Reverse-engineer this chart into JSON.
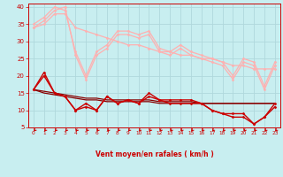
{
  "bg_color": "#c8eef0",
  "grid_color": "#b0d8dc",
  "xlabel": "Vent moyen/en rafales ( km/h )",
  "xlabel_color": "#cc0000",
  "tick_color": "#cc0000",
  "ylim": [
    5,
    41
  ],
  "xlim": [
    -0.5,
    23.5
  ],
  "yticks": [
    5,
    10,
    15,
    20,
    25,
    30,
    35,
    40
  ],
  "xticks": [
    0,
    1,
    2,
    3,
    4,
    5,
    6,
    7,
    8,
    9,
    10,
    11,
    12,
    13,
    14,
    15,
    16,
    17,
    18,
    19,
    20,
    21,
    22,
    23
  ],
  "series": [
    {
      "x": [
        0,
        1,
        2,
        3,
        4,
        5,
        6,
        7,
        8,
        9,
        10,
        11,
        12,
        13,
        14,
        15,
        16,
        17,
        18,
        19,
        20,
        21,
        22,
        23
      ],
      "y": [
        34,
        36,
        39,
        40,
        26,
        19,
        26,
        28,
        32,
        32,
        31,
        32,
        27,
        26,
        28,
        26,
        25,
        24,
        23,
        19,
        24,
        23,
        16,
        23
      ],
      "color": "#ffb0b0",
      "lw": 0.9,
      "marker": "D",
      "ms": 1.5,
      "zorder": 3
    },
    {
      "x": [
        0,
        1,
        2,
        3,
        4,
        5,
        6,
        7,
        8,
        9,
        10,
        11,
        12,
        13,
        14,
        15,
        16,
        17,
        18,
        19,
        20,
        21,
        22,
        23
      ],
      "y": [
        35,
        37,
        40,
        39,
        27,
        20,
        27,
        29,
        33,
        33,
        32,
        33,
        28,
        27,
        29,
        27,
        26,
        25,
        24,
        20,
        25,
        24,
        17,
        24
      ],
      "color": "#ffb0b0",
      "lw": 0.9,
      "marker": "D",
      "ms": 1.5,
      "zorder": 3
    },
    {
      "x": [
        0,
        1,
        2,
        3,
        4,
        5,
        6,
        7,
        8,
        9,
        10,
        11,
        12,
        13,
        14,
        15,
        16,
        17,
        18,
        19,
        20,
        21,
        22,
        23
      ],
      "y": [
        34,
        35,
        38,
        38,
        34,
        33,
        32,
        31,
        30,
        29,
        29,
        28,
        27,
        27,
        26,
        26,
        25,
        25,
        24,
        23,
        23,
        22,
        22,
        22
      ],
      "color": "#ffb0b0",
      "lw": 0.9,
      "marker": "D",
      "ms": 1.5,
      "zorder": 2
    },
    {
      "x": [
        0,
        1,
        2,
        3,
        4,
        5,
        6,
        7,
        8,
        9,
        10,
        11,
        12,
        13,
        14,
        15,
        16,
        17,
        18,
        19,
        20,
        21,
        22,
        23
      ],
      "y": [
        16,
        21,
        15,
        14,
        10,
        12,
        10,
        14,
        12,
        13,
        12,
        15,
        13,
        13,
        13,
        13,
        12,
        10,
        9,
        9,
        9,
        6,
        8,
        12
      ],
      "color": "#cc0000",
      "lw": 1.0,
      "marker": "D",
      "ms": 1.5,
      "zorder": 4
    },
    {
      "x": [
        0,
        1,
        2,
        3,
        4,
        5,
        6,
        7,
        8,
        9,
        10,
        11,
        12,
        13,
        14,
        15,
        16,
        17,
        18,
        19,
        20,
        21,
        22,
        23
      ],
      "y": [
        16,
        20,
        15,
        14,
        10,
        11,
        10,
        14,
        12,
        13,
        12,
        14,
        13,
        12,
        12,
        12,
        12,
        10,
        9,
        8,
        8,
        6,
        8,
        11
      ],
      "color": "#cc0000",
      "lw": 1.0,
      "marker": "D",
      "ms": 1.5,
      "zorder": 4
    },
    {
      "x": [
        0,
        1,
        2,
        3,
        4,
        5,
        6,
        7,
        8,
        9,
        10,
        11,
        12,
        13,
        14,
        15,
        16,
        17,
        18,
        19,
        20,
        21,
        22,
        23
      ],
      "y": [
        16,
        15.5,
        15,
        14.5,
        14,
        13.5,
        13.5,
        13,
        13,
        13,
        13,
        13,
        12.5,
        12.5,
        12.5,
        12.5,
        12,
        12,
        12,
        12,
        12,
        12,
        12,
        12
      ],
      "color": "#880000",
      "lw": 0.9,
      "marker": null,
      "ms": 0,
      "zorder": 2
    },
    {
      "x": [
        0,
        1,
        2,
        3,
        4,
        5,
        6,
        7,
        8,
        9,
        10,
        11,
        12,
        13,
        14,
        15,
        16,
        17,
        18,
        19,
        20,
        21,
        22,
        23
      ],
      "y": [
        16,
        15,
        14.5,
        14,
        13.5,
        13,
        13,
        12.5,
        12.5,
        12.5,
        12.5,
        12.5,
        12,
        12,
        12,
        12,
        12,
        12,
        12,
        12,
        12,
        12,
        12,
        12
      ],
      "color": "#880000",
      "lw": 0.9,
      "marker": null,
      "ms": 0,
      "zorder": 2
    }
  ],
  "arrow_color": "#cc0000"
}
